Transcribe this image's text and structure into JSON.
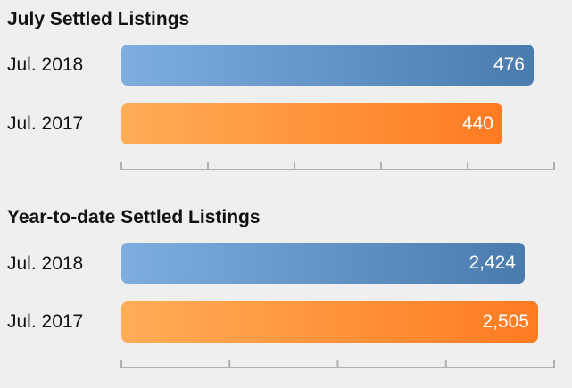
{
  "chart_data": [
    {
      "type": "bar",
      "orientation": "horizontal",
      "title": "July Settled Listings",
      "categories": [
        "Jul. 2018",
        "Jul. 2017"
      ],
      "values": [
        476,
        440
      ],
      "value_labels": [
        "476",
        "440"
      ],
      "colors": [
        "#5b8cc0",
        "#ff9038"
      ],
      "xlim": [
        0,
        500
      ],
      "ticks": 6
    },
    {
      "type": "bar",
      "orientation": "horizontal",
      "title": "Year-to-date Settled Listings",
      "categories": [
        "Jul. 2018",
        "Jul. 2017"
      ],
      "values": [
        2424,
        2505
      ],
      "value_labels": [
        "2,424",
        "2,505"
      ],
      "colors": [
        "#5b8cc0",
        "#ff9038"
      ],
      "xlim": [
        0,
        2600
      ],
      "ticks": 5
    }
  ]
}
